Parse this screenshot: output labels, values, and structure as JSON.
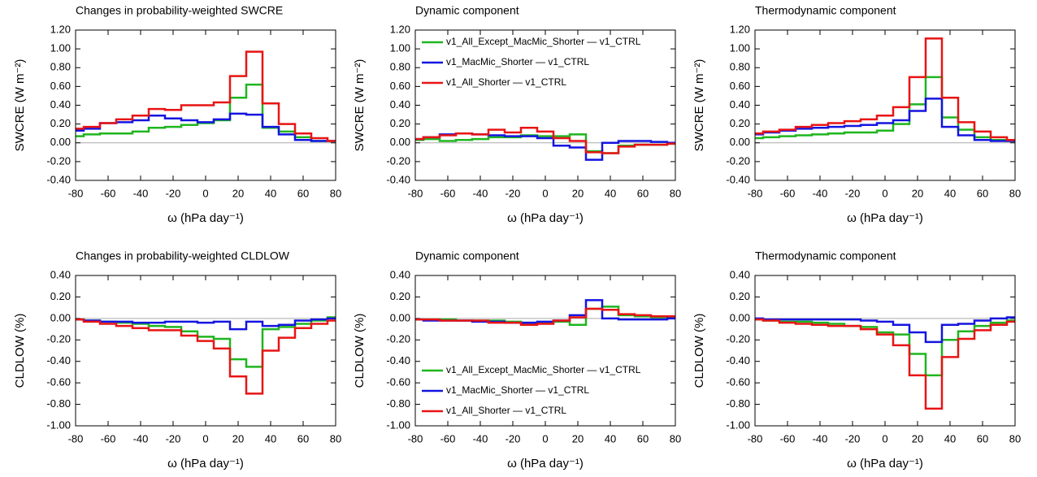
{
  "chart_data": [
    {
      "type": "line",
      "step": true,
      "title": "Changes in probability-weighted SWCRE",
      "xlabel": "ω (hPa day⁻¹)",
      "ylabel": "SWCRE (W m⁻²)",
      "x": [
        -80,
        -70,
        -60,
        -50,
        -40,
        -30,
        -20,
        -10,
        0,
        10,
        20,
        30,
        40,
        50,
        60,
        70,
        80
      ],
      "xlim": [
        -80,
        80
      ],
      "xticks": [
        -80,
        -60,
        -40,
        -20,
        0,
        20,
        40,
        60,
        80
      ],
      "ylim": [
        -0.4,
        1.2
      ],
      "yticks": [
        {
          "value": -0.4,
          "label": "-0.40"
        },
        {
          "value": -0.2,
          "label": "-0.20"
        },
        {
          "value": 0,
          "label": "0.00"
        },
        {
          "value": 0.2,
          "label": "0.20"
        },
        {
          "value": 0.4,
          "label": "0.40"
        },
        {
          "value": 0.6,
          "label": "0.60"
        },
        {
          "value": 0.8,
          "label": "0.80"
        },
        {
          "value": 1.0,
          "label": "1.00"
        },
        {
          "value": 1.2,
          "label": "1.20"
        }
      ],
      "series": [
        {
          "name": "v1_All_Except_MacMic_Shorter — v1_CTRL",
          "color": "#1fb51f",
          "values": [
            0.07,
            0.09,
            0.1,
            0.1,
            0.12,
            0.16,
            0.17,
            0.19,
            0.21,
            0.24,
            0.48,
            0.62,
            0.16,
            0.12,
            0.06,
            0.02,
            0.02
          ]
        },
        {
          "name": "v1_MacMic_Shorter — v1_CTRL",
          "color": "#1414e0",
          "values": [
            0.13,
            0.15,
            0.21,
            0.22,
            0.24,
            0.29,
            0.26,
            0.24,
            0.22,
            0.25,
            0.31,
            0.3,
            0.17,
            0.09,
            0.03,
            0.02,
            0.02
          ]
        },
        {
          "name": "v1_All_Shorter — v1_CTRL",
          "color": "#e81414",
          "values": [
            0.15,
            0.17,
            0.21,
            0.25,
            0.29,
            0.36,
            0.35,
            0.4,
            0.4,
            0.43,
            0.71,
            0.97,
            0.42,
            0.2,
            0.1,
            0.05,
            0.02
          ]
        }
      ]
    },
    {
      "type": "line",
      "step": true,
      "title": "Dynamic component",
      "xlabel": "ω (hPa day⁻¹)",
      "ylabel": "SWCRE (W m⁻²)",
      "legend": "upper left",
      "x": [
        -80,
        -70,
        -60,
        -50,
        -40,
        -30,
        -20,
        -10,
        0,
        10,
        20,
        30,
        40,
        50,
        60,
        70,
        80
      ],
      "xlim": [
        -80,
        80
      ],
      "xticks": [
        -80,
        -60,
        -40,
        -20,
        0,
        20,
        40,
        60,
        80
      ],
      "ylim": [
        -0.4,
        1.2
      ],
      "yticks": [
        {
          "value": -0.4,
          "label": "-0.40"
        },
        {
          "value": -0.2,
          "label": "-0.20"
        },
        {
          "value": 0,
          "label": "0.00"
        },
        {
          "value": 0.2,
          "label": "0.20"
        },
        {
          "value": 0.4,
          "label": "0.40"
        },
        {
          "value": 0.6,
          "label": "0.60"
        },
        {
          "value": 0.8,
          "label": "0.80"
        },
        {
          "value": 1.0,
          "label": "1.00"
        },
        {
          "value": 1.2,
          "label": "1.20"
        }
      ],
      "series": [
        {
          "name": "v1_All_Except_MacMic_Shorter — v1_CTRL",
          "color": "#1fb51f",
          "values": [
            0.03,
            0.04,
            0.02,
            0.03,
            0.04,
            0.06,
            0.06,
            0.08,
            0.07,
            0.07,
            0.09,
            -0.09,
            -0.11,
            -0.03,
            -0.02,
            -0.02,
            -0.01
          ]
        },
        {
          "name": "v1_MacMic_Shorter — v1_CTRL",
          "color": "#1414e0",
          "values": [
            0.04,
            0.06,
            0.09,
            0.1,
            0.09,
            0.08,
            0.07,
            0.07,
            0.05,
            -0.03,
            -0.05,
            -0.18,
            0.0,
            0.02,
            0.02,
            0.01,
            0.0
          ]
        },
        {
          "name": "v1_All_Shorter — v1_CTRL",
          "color": "#e81414",
          "values": [
            0.04,
            0.06,
            0.08,
            0.1,
            0.09,
            0.14,
            0.11,
            0.16,
            0.12,
            0.05,
            0.02,
            -0.1,
            -0.11,
            -0.04,
            -0.02,
            -0.02,
            -0.01
          ]
        }
      ]
    },
    {
      "type": "line",
      "step": true,
      "title": "Thermodynamic component",
      "xlabel": "ω (hPa day⁻¹)",
      "ylabel": "SWCRE (W m⁻²)",
      "x": [
        -80,
        -70,
        -60,
        -50,
        -40,
        -30,
        -20,
        -10,
        0,
        10,
        20,
        30,
        40,
        50,
        60,
        70,
        80
      ],
      "xlim": [
        -80,
        80
      ],
      "xticks": [
        -80,
        -60,
        -40,
        -20,
        0,
        20,
        40,
        60,
        80
      ],
      "ylim": [
        -0.4,
        1.2
      ],
      "yticks": [
        {
          "value": -0.4,
          "label": "-0.40"
        },
        {
          "value": -0.2,
          "label": "-0.20"
        },
        {
          "value": 0,
          "label": "0.00"
        },
        {
          "value": 0.2,
          "label": "0.20"
        },
        {
          "value": 0.4,
          "label": "0.40"
        },
        {
          "value": 0.6,
          "label": "0.60"
        },
        {
          "value": 0.8,
          "label": "0.80"
        },
        {
          "value": 1.0,
          "label": "1.00"
        },
        {
          "value": 1.2,
          "label": "1.20"
        }
      ],
      "series": [
        {
          "name": "v1_All_Except_MacMic_Shorter — v1_CTRL",
          "color": "#1fb51f",
          "values": [
            0.05,
            0.06,
            0.07,
            0.08,
            0.09,
            0.1,
            0.11,
            0.11,
            0.13,
            0.2,
            0.41,
            0.7,
            0.27,
            0.14,
            0.06,
            0.03,
            0.02
          ]
        },
        {
          "name": "v1_MacMic_Shorter — v1_CTRL",
          "color": "#1414e0",
          "values": [
            0.09,
            0.11,
            0.13,
            0.15,
            0.16,
            0.17,
            0.18,
            0.19,
            0.21,
            0.24,
            0.34,
            0.47,
            0.17,
            0.08,
            0.03,
            0.02,
            0.02
          ]
        },
        {
          "name": "v1_All_Shorter — v1_CTRL",
          "color": "#e81414",
          "values": [
            0.1,
            0.12,
            0.14,
            0.17,
            0.19,
            0.21,
            0.23,
            0.25,
            0.29,
            0.38,
            0.7,
            1.11,
            0.48,
            0.22,
            0.12,
            0.06,
            0.03
          ]
        }
      ]
    },
    {
      "type": "line",
      "step": true,
      "title": "Changes in probability-weighted CLDLOW",
      "xlabel": "ω (hPa day⁻¹)",
      "ylabel": "CLDLOW (%)",
      "x": [
        -80,
        -70,
        -60,
        -50,
        -40,
        -30,
        -20,
        -10,
        0,
        10,
        20,
        30,
        40,
        50,
        60,
        70,
        80
      ],
      "xlim": [
        -80,
        80
      ],
      "xticks": [
        -80,
        -60,
        -40,
        -20,
        0,
        20,
        40,
        60,
        80
      ],
      "ylim": [
        -1.0,
        0.4
      ],
      "yticks": [
        {
          "value": -1.0,
          "label": "-1.00"
        },
        {
          "value": -0.8,
          "label": "-0.80"
        },
        {
          "value": -0.6,
          "label": "-0.60"
        },
        {
          "value": -0.4,
          "label": "-0.40"
        },
        {
          "value": -0.2,
          "label": "-0.20"
        },
        {
          "value": 0,
          "label": "0.00"
        },
        {
          "value": 0.2,
          "label": "0.20"
        },
        {
          "value": 0.4,
          "label": "0.40"
        }
      ],
      "series": [
        {
          "name": "v1_All_Except_MacMic_Shorter — v1_CTRL",
          "color": "#1fb51f",
          "values": [
            -0.01,
            -0.02,
            -0.03,
            -0.04,
            -0.05,
            -0.07,
            -0.08,
            -0.12,
            -0.17,
            -0.19,
            -0.38,
            -0.45,
            -0.1,
            -0.08,
            -0.05,
            -0.02,
            0.01
          ]
        },
        {
          "name": "v1_MacMic_Shorter — v1_CTRL",
          "color": "#1414e0",
          "values": [
            -0.01,
            -0.02,
            -0.03,
            -0.03,
            -0.04,
            -0.04,
            -0.03,
            -0.03,
            -0.04,
            -0.03,
            -0.1,
            -0.03,
            -0.07,
            -0.06,
            -0.02,
            -0.01,
            0.0
          ]
        },
        {
          "name": "v1_All_Shorter — v1_CTRL",
          "color": "#e81414",
          "values": [
            -0.01,
            -0.03,
            -0.05,
            -0.07,
            -0.09,
            -0.11,
            -0.11,
            -0.16,
            -0.21,
            -0.28,
            -0.54,
            -0.7,
            -0.3,
            -0.18,
            -0.09,
            -0.05,
            -0.02
          ]
        }
      ]
    },
    {
      "type": "line",
      "step": true,
      "title": "Dynamic component",
      "xlabel": "ω (hPa day⁻¹)",
      "ylabel": "CLDLOW (%)",
      "legend": "lower left",
      "x": [
        -80,
        -70,
        -60,
        -50,
        -40,
        -30,
        -20,
        -10,
        0,
        10,
        20,
        30,
        40,
        50,
        60,
        70,
        80
      ],
      "xlim": [
        -80,
        80
      ],
      "xticks": [
        -80,
        -60,
        -40,
        -20,
        0,
        20,
        40,
        60,
        80
      ],
      "ylim": [
        -1.0,
        0.4
      ],
      "yticks": [
        {
          "value": -1.0,
          "label": "-1.00"
        },
        {
          "value": -0.8,
          "label": "-0.80"
        },
        {
          "value": -0.6,
          "label": "-0.60"
        },
        {
          "value": -0.4,
          "label": "-0.40"
        },
        {
          "value": -0.2,
          "label": "-0.20"
        },
        {
          "value": 0,
          "label": "0.00"
        },
        {
          "value": 0.2,
          "label": "0.20"
        },
        {
          "value": 0.4,
          "label": "0.40"
        }
      ],
      "series": [
        {
          "name": "v1_All_Except_MacMic_Shorter — v1_CTRL",
          "color": "#1fb51f",
          "values": [
            -0.01,
            -0.01,
            -0.01,
            -0.02,
            -0.02,
            -0.02,
            -0.03,
            -0.04,
            -0.04,
            -0.03,
            -0.06,
            0.09,
            0.11,
            0.03,
            0.02,
            0.01,
            0.01
          ]
        },
        {
          "name": "v1_MacMic_Shorter — v1_CTRL",
          "color": "#1414e0",
          "values": [
            -0.01,
            -0.02,
            -0.02,
            -0.02,
            -0.03,
            -0.03,
            -0.04,
            -0.04,
            -0.03,
            -0.02,
            0.03,
            0.17,
            0.0,
            -0.01,
            -0.01,
            -0.01,
            0.0
          ]
        },
        {
          "name": "v1_All_Shorter — v1_CTRL",
          "color": "#e81414",
          "values": [
            -0.01,
            -0.01,
            -0.02,
            -0.02,
            -0.02,
            -0.04,
            -0.04,
            -0.06,
            -0.05,
            -0.02,
            0.01,
            0.09,
            0.08,
            0.04,
            0.03,
            0.02,
            0.02
          ]
        }
      ]
    },
    {
      "type": "line",
      "step": true,
      "title": "Thermodynamic component",
      "xlabel": "ω (hPa day⁻¹)",
      "ylabel": "CLDLOW (%)",
      "x": [
        -80,
        -70,
        -60,
        -50,
        -40,
        -30,
        -20,
        -10,
        0,
        10,
        20,
        30,
        40,
        50,
        60,
        70,
        80
      ],
      "xlim": [
        -80,
        80
      ],
      "xticks": [
        -80,
        -60,
        -40,
        -20,
        0,
        20,
        40,
        60,
        80
      ],
      "ylim": [
        -1.0,
        0.4
      ],
      "yticks": [
        {
          "value": -1.0,
          "label": "-1.00"
        },
        {
          "value": -0.8,
          "label": "-0.80"
        },
        {
          "value": -0.6,
          "label": "-0.60"
        },
        {
          "value": -0.4,
          "label": "-0.40"
        },
        {
          "value": -0.2,
          "label": "-0.20"
        },
        {
          "value": 0,
          "label": "0.00"
        },
        {
          "value": 0.2,
          "label": "0.20"
        },
        {
          "value": 0.4,
          "label": "0.40"
        }
      ],
      "series": [
        {
          "name": "v1_All_Except_MacMic_Shorter — v1_CTRL",
          "color": "#1fb51f",
          "values": [
            -0.01,
            -0.02,
            -0.03,
            -0.03,
            -0.04,
            -0.05,
            -0.07,
            -0.08,
            -0.13,
            -0.15,
            -0.33,
            -0.53,
            -0.2,
            -0.12,
            -0.07,
            -0.04,
            -0.02
          ]
        },
        {
          "name": "v1_MacMic_Shorter — v1_CTRL",
          "color": "#1414e0",
          "values": [
            0.0,
            -0.01,
            -0.01,
            -0.01,
            -0.01,
            -0.01,
            -0.01,
            -0.02,
            -0.03,
            -0.06,
            -0.13,
            -0.22,
            -0.06,
            -0.05,
            -0.02,
            0.0,
            0.01
          ]
        },
        {
          "name": "v1_All_Shorter — v1_CTRL",
          "color": "#e81414",
          "values": [
            -0.01,
            -0.02,
            -0.04,
            -0.05,
            -0.06,
            -0.07,
            -0.07,
            -0.1,
            -0.15,
            -0.25,
            -0.53,
            -0.84,
            -0.36,
            -0.19,
            -0.11,
            -0.06,
            -0.03
          ]
        }
      ]
    }
  ]
}
